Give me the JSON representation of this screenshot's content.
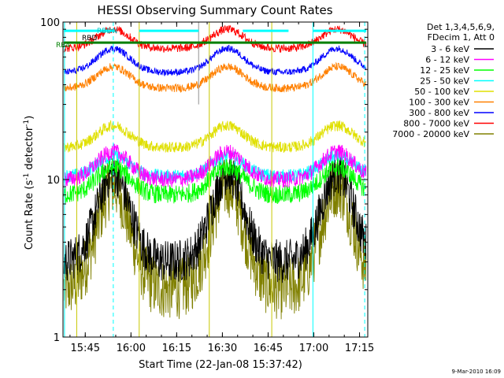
{
  "chart_data": {
    "type": "line",
    "title": "HESSI Observing Summary Count Rates",
    "xlabel": "Start Time (22-Jan-08 15:37:42)",
    "ylabel_parts": [
      "Count Rate (s",
      "-1",
      " detector",
      "-1",
      ")"
    ],
    "yscale": "log",
    "ylim": [
      1,
      100
    ],
    "xlim_minutes": [
      0,
      100
    ],
    "x_ticks": [
      {
        "label": "15:45",
        "min": 7.3
      },
      {
        "label": "16:00",
        "min": 22.3
      },
      {
        "label": "16:15",
        "min": 37.3
      },
      {
        "label": "16:30",
        "min": 52.3
      },
      {
        "label": "16:45",
        "min": 67.3
      },
      {
        "label": "17:00",
        "min": 82.3
      },
      {
        "label": "17:15",
        "min": 97.3
      }
    ],
    "y_ticks": [
      {
        "label": "1",
        "value": 1
      },
      {
        "label": "10",
        "value": 10
      },
      {
        "label": "100",
        "value": 100
      }
    ],
    "legend_title": [
      "Det 1,3,4,5,6,9,",
      "FDecim 1, Att 0"
    ],
    "legend_placement": "right",
    "footer_date": "9-Mar-2010 16:09",
    "bar_labels": [
      "RBDN",
      "RBD",
      "RB4"
    ],
    "grid": false,
    "markers": {
      "cyan_solid": [
        0.5,
        82.0
      ],
      "cyan_dashed": [
        16.5,
        99.0
      ],
      "olive_solid": [
        4.5,
        25.0,
        48.0,
        68.5
      ],
      "gray_solid": [
        44.5
      ]
    },
    "segments": [
      [
        0.3,
        25.0
      ],
      [
        25.0,
        44.5
      ],
      [
        44.5,
        59.0
      ],
      [
        59.0,
        74.0
      ],
      [
        74.0,
        99.5
      ]
    ],
    "hlines": [
      {
        "name": "RBDN",
        "color": "#00ffff",
        "value": 88,
        "ranges": [
          [
            0.3,
            17.0
          ],
          [
            25.0,
            44.5
          ],
          [
            59.0,
            74.0
          ],
          [
            82.0,
            99.5
          ]
        ]
      },
      {
        "name": "RB4",
        "color": "#007f00",
        "value": 74,
        "ranges": [
          [
            0.3,
            99.5
          ]
        ]
      }
    ],
    "series": [
      {
        "name": "3 - 6 keV",
        "color": "#000000",
        "peak": 11.0,
        "min": 3.0,
        "noise": 0.32
      },
      {
        "name": "6 - 12 keV",
        "color": "#ff00ff",
        "peak": 15.0,
        "min": 10.0,
        "noise": 0.12
      },
      {
        "name": "12 - 25 keV",
        "color": "#00ff00",
        "peak": 12.0,
        "min": 8.0,
        "noise": 0.14
      },
      {
        "name": "25 - 50 keV",
        "color": "#00ffff",
        "peak": 14.0,
        "min": 10.5,
        "noise": 0.1
      },
      {
        "name": "50 - 100 keV",
        "color": "#e0e000",
        "peak": 22.0,
        "min": 16.0,
        "noise": 0.08
      },
      {
        "name": "100 - 300 keV",
        "color": "#ff8000",
        "peak": 52.0,
        "min": 38.0,
        "noise": 0.06
      },
      {
        "name": "300 - 800 keV",
        "color": "#0000ff",
        "peak": 68.0,
        "min": 48.0,
        "noise": 0.05
      },
      {
        "name": "800 - 7000 keV",
        "color": "#ff0000",
        "peak": 90.0,
        "min": 68.0,
        "noise": 0.06
      },
      {
        "name": "7000 - 20000 keV",
        "color": "#808000",
        "peak": 9.0,
        "min": 2.0,
        "noise": 0.45
      }
    ]
  }
}
